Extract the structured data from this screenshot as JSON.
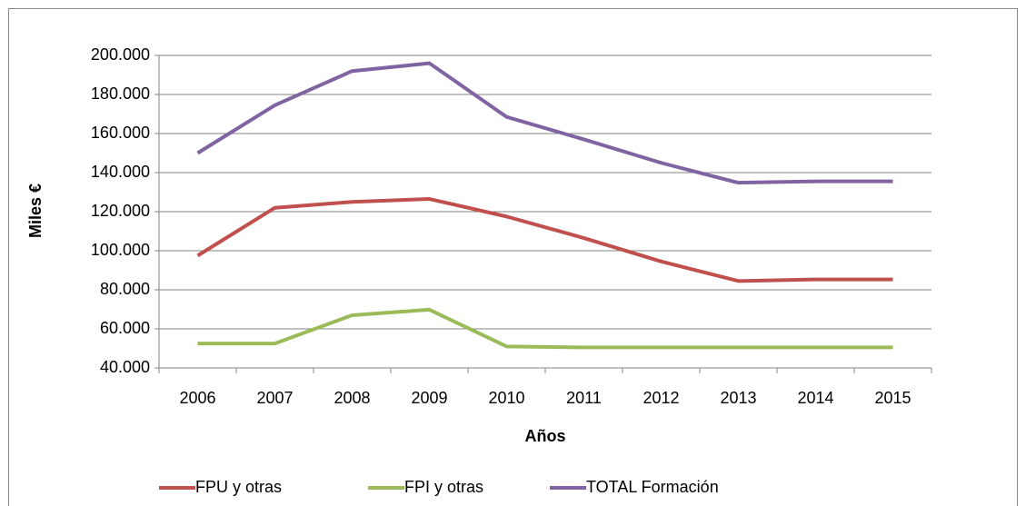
{
  "chart_data": {
    "type": "line",
    "x_label": "Años",
    "y_label": "Miles  €",
    "categories": [
      "2006",
      "2007",
      "2008",
      "2009",
      "2010",
      "2011",
      "2012",
      "2013",
      "2014",
      "2015"
    ],
    "series": [
      {
        "name": "FPU y otras",
        "color": "#c0504d",
        "values": [
          97500,
          122000,
          125000,
          126500,
          117500,
          106500,
          94500,
          84500,
          85300,
          85300
        ]
      },
      {
        "name": "FPI y otras",
        "color": "#9bbb59",
        "values": [
          52500,
          52500,
          67000,
          69800,
          51000,
          50500,
          50500,
          50500,
          50500,
          50500
        ]
      },
      {
        "name": "TOTAL Formación",
        "color": "#8064a2",
        "values": [
          150000,
          174500,
          192000,
          196000,
          168500,
          157000,
          145000,
          134800,
          135500,
          135500
        ]
      }
    ],
    "ylim": [
      40000,
      200000
    ],
    "yticks": [
      {
        "value": 40000,
        "label": "40.000"
      },
      {
        "value": 60000,
        "label": "60.000"
      },
      {
        "value": 80000,
        "label": "80.000"
      },
      {
        "value": 100000,
        "label": "100.000"
      },
      {
        "value": 120000,
        "label": "120.000"
      },
      {
        "value": 140000,
        "label": "140.000"
      },
      {
        "value": 160000,
        "label": "160.000"
      },
      {
        "value": 180000,
        "label": "180.000"
      },
      {
        "value": 200000,
        "label": "200.000"
      }
    ],
    "grid": true,
    "legend": "bottom"
  }
}
